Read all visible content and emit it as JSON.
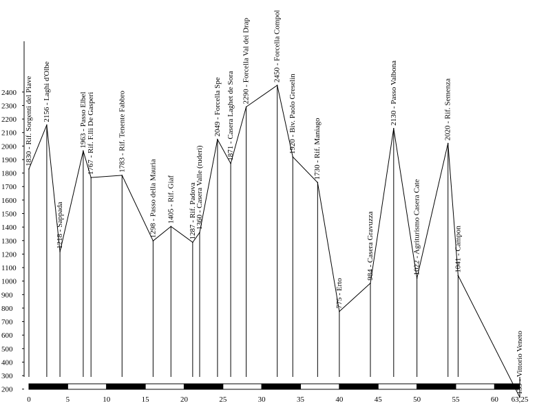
{
  "chart_data": {
    "type": "line",
    "title": "",
    "xlabel": "",
    "ylabel": "",
    "xlim": [
      0,
      63.25
    ],
    "ylim": [
      0,
      2450
    ],
    "y_ticks": [
      200,
      300,
      400,
      500,
      600,
      700,
      800,
      900,
      1000,
      1100,
      1200,
      1300,
      1400,
      1500,
      1600,
      1700,
      1800,
      1900,
      2000,
      2100,
      2200,
      2300,
      2400
    ],
    "x_ticks": [
      {
        "value": 0,
        "label": "0"
      },
      {
        "value": 5,
        "label": "5"
      },
      {
        "value": 10,
        "label": "10"
      },
      {
        "value": 15,
        "label": "15"
      },
      {
        "value": 20,
        "label": "20"
      },
      {
        "value": 25,
        "label": "25"
      },
      {
        "value": 30,
        "label": "30"
      },
      {
        "value": 35,
        "label": "35"
      },
      {
        "value": 40,
        "label": "40"
      },
      {
        "value": 45,
        "label": "45"
      },
      {
        "value": 50,
        "label": "50"
      },
      {
        "value": 55,
        "label": "55"
      },
      {
        "value": 60,
        "label": "60"
      },
      {
        "value": 63.25,
        "label": "63,25"
      }
    ],
    "grid": false,
    "legend": "none",
    "points": [
      {
        "x": 0,
        "y": 1830,
        "label": "1830 - Rif. Sorgenti del Piave"
      },
      {
        "x": 2.3,
        "y": 2156,
        "label": "2156 - Laghi d'Olbe"
      },
      {
        "x": 4,
        "y": 1218,
        "label": "1218 - Sappada"
      },
      {
        "x": 7,
        "y": 1963,
        "label": "1963 - Passo Elbel"
      },
      {
        "x": 8,
        "y": 1767,
        "label": "1767 - Rif. F.lli De Gasperi"
      },
      {
        "x": 12,
        "y": 1783,
        "label": "1783 - Rif. Tenente Fabbro"
      },
      {
        "x": 16,
        "y": 1298,
        "label": "1298 - Passo della Mauria"
      },
      {
        "x": 18.3,
        "y": 1405,
        "label": "1405 - Rif. Giaf"
      },
      {
        "x": 21.1,
        "y": 1287,
        "label": "1287 - Rif. Padova"
      },
      {
        "x": 22,
        "y": 1360,
        "label": "1360 - Casera Valle (ruderi)"
      },
      {
        "x": 24.3,
        "y": 2049,
        "label": "2049 - Forcella Spe"
      },
      {
        "x": 26,
        "y": 1871,
        "label": "1871 - Casera Laghet de Sora"
      },
      {
        "x": 28,
        "y": 2290,
        "label": "2290 - Forcella Val dei Drap"
      },
      {
        "x": 32,
        "y": 2450,
        "label": "2450 - Forcella Compol"
      },
      {
        "x": 34,
        "y": 1920,
        "label": "1920 - Biv. Paolo Greselin"
      },
      {
        "x": 37.2,
        "y": 1730,
        "label": "1730 - Rif. Maniago"
      },
      {
        "x": 40,
        "y": 775,
        "label": "775 - Erto"
      },
      {
        "x": 44,
        "y": 984,
        "label": "984 - Casera Gravuzza"
      },
      {
        "x": 47,
        "y": 2130,
        "label": "2130 - Passo Valbona"
      },
      {
        "x": 50,
        "y": 1022,
        "label": "1022 - Agriturismo Casera Cate"
      },
      {
        "x": 54,
        "y": 2020,
        "label": "2020 - Rif. Semenza"
      },
      {
        "x": 55.3,
        "y": 1041,
        "label": "1041 - Campon"
      },
      {
        "x": 63.25,
        "y": 139,
        "label": "139 - Vittorio Veneto"
      }
    ]
  }
}
